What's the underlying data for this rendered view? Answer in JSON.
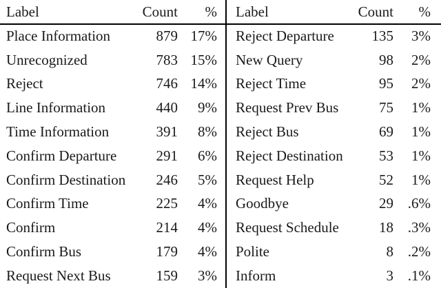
{
  "colors": {
    "background": "#ffffff",
    "text": "#1a1a1a",
    "rule": "#000000"
  },
  "tables": {
    "left": {
      "header": {
        "label": "Label",
        "count": "Count",
        "pct": "%"
      },
      "rows": [
        {
          "label": "Place Information",
          "count": "879",
          "pct": "17%"
        },
        {
          "label": "Unrecognized",
          "count": "783",
          "pct": "15%"
        },
        {
          "label": "Reject",
          "count": "746",
          "pct": "14%"
        },
        {
          "label": "Line Information",
          "count": "440",
          "pct": "9%"
        },
        {
          "label": "Time Information",
          "count": "391",
          "pct": "8%"
        },
        {
          "label": "Confirm Departure",
          "count": "291",
          "pct": "6%"
        },
        {
          "label": "Confirm Destination",
          "count": "246",
          "pct": "5%"
        },
        {
          "label": "Confirm Time",
          "count": "225",
          "pct": "4%"
        },
        {
          "label": "Confirm",
          "count": "214",
          "pct": "4%"
        },
        {
          "label": "Confirm Bus",
          "count": "179",
          "pct": "4%"
        },
        {
          "label": "Request Next Bus",
          "count": "159",
          "pct": "3%"
        }
      ]
    },
    "right": {
      "header": {
        "label": "Label",
        "count": "Count",
        "pct": "%"
      },
      "rows": [
        {
          "label": "Reject Departure",
          "count": "135",
          "pct": "3%"
        },
        {
          "label": "New Query",
          "count": "98",
          "pct": "2%"
        },
        {
          "label": "Reject Time",
          "count": "95",
          "pct": "2%"
        },
        {
          "label": "Request Prev Bus",
          "count": "75",
          "pct": "1%"
        },
        {
          "label": "Reject Bus",
          "count": "69",
          "pct": "1%"
        },
        {
          "label": "Reject Destination",
          "count": "53",
          "pct": "1%"
        },
        {
          "label": "Request Help",
          "count": "52",
          "pct": "1%"
        },
        {
          "label": "Goodbye",
          "count": "29",
          "pct": ".6%"
        },
        {
          "label": "Request Schedule",
          "count": "18",
          "pct": ".3%"
        },
        {
          "label": "Polite",
          "count": "8",
          "pct": ".2%"
        },
        {
          "label": "Inform",
          "count": "3",
          "pct": ".1%"
        }
      ]
    }
  }
}
